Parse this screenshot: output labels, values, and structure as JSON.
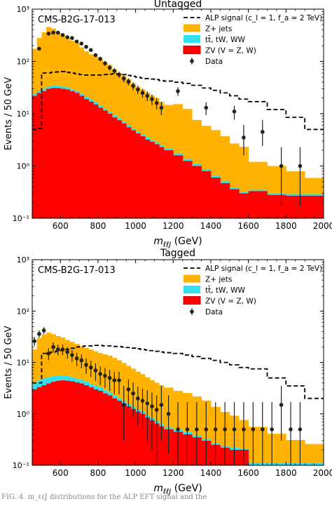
{
  "chart_data": [
    {
      "type": "bar",
      "title": "Untagged",
      "experiment_label": "CMS-B2G-17-013",
      "xlabel": "m_ℓℓJ (GeV)",
      "ylabel": "Events / 50 GeV",
      "xlim": [
        450,
        2000
      ],
      "ylim": [
        0.1,
        1000
      ],
      "yscale": "log",
      "x_ticks": [
        "600",
        "800",
        "1000",
        "1200",
        "1400",
        "1600",
        "1800",
        "2000"
      ],
      "y_ticks": [
        "10⁻¹",
        "10⁰",
        "10¹",
        "10²",
        "10³"
      ],
      "legend_position": "top-right",
      "bin_edges": [
        450,
        475,
        500,
        525,
        550,
        575,
        600,
        625,
        650,
        675,
        700,
        725,
        750,
        775,
        800,
        825,
        850,
        875,
        900,
        925,
        950,
        975,
        1000,
        1025,
        1050,
        1075,
        1100,
        1125,
        1150,
        1200,
        1250,
        1300,
        1350,
        1400,
        1450,
        1500,
        1550,
        1600,
        1700,
        1800,
        1900,
        2000
      ],
      "stack": [
        {
          "name": "ZV (V = Z, W)",
          "color": "#ff0000",
          "values": [
            22,
            25,
            27,
            30,
            31,
            31,
            30,
            29,
            27,
            25,
            22,
            19,
            17,
            15,
            13,
            11.5,
            10,
            8.5,
            7.5,
            6.5,
            5.5,
            4.8,
            4.2,
            3.7,
            3.2,
            2.9,
            2.6,
            2.3,
            2.0,
            1.6,
            1.25,
            1.0,
            0.8,
            0.6,
            0.47,
            0.36,
            0.3,
            0.33,
            0.28,
            0.27,
            0.27
          ]
        },
        {
          "name": "tt̄, tW, WW",
          "color": "#33e0ee",
          "values": [
            2,
            2.5,
            3,
            3.2,
            3.3,
            3.2,
            3.0,
            2.8,
            2.6,
            2.3,
            2.0,
            1.8,
            1.6,
            1.4,
            1.2,
            1.0,
            0.9,
            0.8,
            0.7,
            0.6,
            0.5,
            0.45,
            0.4,
            0.35,
            0.3,
            0.27,
            0.24,
            0.21,
            0.18,
            0.14,
            0.11,
            0.09,
            0.07,
            0.05,
            0.04,
            0.03,
            0.02,
            0.02,
            0.02,
            0.02,
            0.02
          ]
        },
        {
          "name": "Z+ jets",
          "color": "#ffb300",
          "values": [
            150,
            253,
            330,
            420,
            390,
            320,
            290,
            250,
            220,
            193,
            160,
            135,
            118,
            108,
            95,
            84,
            75,
            61,
            52,
            46,
            40,
            33,
            28,
            25,
            22,
            19,
            17,
            14.5,
            12.5,
            13.5,
            11,
            6.5,
            5,
            4.2,
            3.2,
            2.3,
            2.0,
            0.85,
            0.7,
            0.5,
            0.3
          ]
        }
      ],
      "signal": {
        "name": "ALP signal (c_l = 1, f_a = 2 TeV)",
        "color": "#000000",
        "values": [
          5,
          5.2,
          60,
          60,
          62,
          63,
          64,
          62,
          60,
          58,
          56,
          55,
          55,
          55,
          55,
          56,
          57,
          58,
          57,
          56,
          54,
          52,
          50,
          48,
          47,
          46,
          45,
          43,
          42,
          40,
          38,
          35,
          31,
          28,
          25,
          22,
          19,
          17,
          12,
          8.5,
          5
        ]
      },
      "data_points": {
        "name": "Data",
        "x": [
          487,
          537,
          562,
          587,
          612,
          637,
          662,
          687,
          712,
          737,
          762,
          787,
          812,
          837,
          862,
          887,
          912,
          937,
          962,
          987,
          1012,
          1037,
          1062,
          1087,
          1112,
          1137,
          1225,
          1375,
          1525,
          1575,
          1675,
          1775,
          1875
        ],
        "y": [
          175,
          340,
          355,
          355,
          320,
          290,
          280,
          240,
          220,
          190,
          165,
          132,
          112,
          92,
          76,
          66,
          56,
          47,
          41,
          34,
          29,
          25,
          22,
          19,
          16,
          13,
          27,
          13,
          11,
          3.5,
          4.5,
          1.0,
          1.0
        ],
        "err_lo": [
          13,
          18,
          19,
          19,
          18,
          17,
          17,
          15,
          15,
          14,
          13,
          11,
          11,
          10,
          9,
          8,
          7.5,
          7,
          6.4,
          5.8,
          5.4,
          5,
          4.7,
          4.4,
          4,
          3.6,
          5.2,
          3.6,
          3.3,
          1.9,
          2.1,
          0.83,
          0.83
        ],
        "err_hi": [
          13,
          18,
          19,
          19,
          18,
          17,
          17,
          15,
          15,
          14,
          13,
          11,
          11,
          10,
          9,
          8,
          7.5,
          7,
          6.4,
          5.8,
          5.4,
          5,
          4.7,
          4.4,
          4,
          3.6,
          5.2,
          3.6,
          3.3,
          2.6,
          3.1,
          1.3,
          1.3
        ]
      }
    },
    {
      "type": "bar",
      "title": "Tagged",
      "experiment_label": "CMS-B2G-17-013",
      "xlabel": "m_ℓℓJ (GeV)",
      "ylabel": "Events / 50 GeV",
      "xlim": [
        450,
        2000
      ],
      "ylim": [
        0.1,
        1000
      ],
      "yscale": "log",
      "x_ticks": [
        "600",
        "800",
        "1000",
        "1200",
        "1400",
        "1600",
        "1800",
        "2000"
      ],
      "y_ticks": [
        "10⁻¹",
        "10⁰",
        "10¹",
        "10²",
        "10³"
      ],
      "legend_position": "top-right",
      "bin_edges": [
        450,
        475,
        500,
        525,
        550,
        575,
        600,
        625,
        650,
        675,
        700,
        725,
        750,
        775,
        800,
        825,
        850,
        875,
        900,
        925,
        950,
        975,
        1000,
        1025,
        1050,
        1075,
        1100,
        1125,
        1150,
        1200,
        1250,
        1300,
        1350,
        1400,
        1450,
        1500,
        1550,
        1600,
        1700,
        1800,
        1900,
        2000
      ],
      "stack": [
        {
          "name": "ZV (V = Z, W)",
          "color": "#ff0000",
          "values": [
            3,
            3.3,
            3.6,
            3.9,
            4.2,
            4.4,
            4.5,
            4.4,
            4.3,
            4.1,
            3.9,
            3.6,
            3.3,
            3.0,
            2.8,
            2.5,
            2.3,
            2.0,
            1.8,
            1.6,
            1.4,
            1.25,
            1.1,
            1.0,
            0.85,
            0.75,
            0.65,
            0.57,
            0.5,
            0.45,
            0.4,
            0.35,
            0.3,
            0.25,
            0.22,
            0.2,
            0.2,
            0.1,
            0.1,
            0.1,
            0.1
          ]
        },
        {
          "name": "tt̄, tW, WW",
          "color": "#33e0ee",
          "values": [
            1.0,
            1.2,
            1.3,
            1.3,
            1.2,
            1.2,
            1.1,
            1.0,
            0.9,
            0.8,
            0.75,
            0.65,
            0.55,
            0.5,
            0.45,
            0.4,
            0.35,
            0.3,
            0.25,
            0.2,
            0.18,
            0.15,
            0.13,
            0.11,
            0.1,
            0.08,
            0.07,
            0.06,
            0.05,
            0.04,
            0.04,
            0.03,
            0.02,
            0.02,
            0.02,
            0.02,
            0.01,
            0.01,
            0.01,
            0.01,
            0.01
          ]
        },
        {
          "name": "Z+ jets",
          "color": "#ffb300",
          "values": [
            14,
            25,
            30,
            33,
            30,
            27,
            25,
            22,
            20,
            18,
            16,
            15,
            14,
            13,
            12,
            11.5,
            11,
            10,
            9,
            8,
            7,
            6.2,
            5.4,
            4.8,
            4.2,
            3.7,
            3.3,
            3.0,
            2.7,
            2.3,
            2.1,
            1.8,
            1.5,
            1.1,
            0.85,
            0.7,
            0.55,
            0.45,
            0.3,
            0.2,
            0.15
          ]
        }
      ],
      "signal": {
        "name": "ALP signal (c_l = 1, f_a = 2 TeV)",
        "color": "#000000",
        "values": [
          4,
          4,
          15,
          15.5,
          16,
          16.5,
          17,
          18,
          19,
          20,
          20.5,
          21,
          21,
          21.5,
          21.5,
          21,
          21,
          20.5,
          20.5,
          20,
          19.5,
          19,
          18.5,
          18,
          17.5,
          17,
          16.5,
          16,
          15.5,
          15,
          14,
          13,
          12,
          11,
          10,
          9,
          8,
          7.5,
          5,
          3.5,
          2
        ]
      },
      "data_points": {
        "name": "Data",
        "x": [
          462,
          487,
          512,
          537,
          562,
          587,
          612,
          637,
          662,
          687,
          712,
          737,
          762,
          787,
          812,
          837,
          862,
          887,
          912,
          937,
          962,
          987,
          1012,
          1037,
          1062,
          1087,
          1112,
          1137,
          1175,
          1225,
          1275,
          1325,
          1375,
          1425,
          1475,
          1525,
          1575,
          1625,
          1675,
          1725,
          1775,
          1825,
          1875
        ],
        "y": [
          26,
          36,
          42,
          15,
          20,
          18,
          18,
          16,
          14,
          12,
          11,
          9,
          8,
          7,
          6,
          5.5,
          5,
          4.5,
          4.5,
          1.5,
          3,
          2.5,
          2,
          1.8,
          1.6,
          1.4,
          1.2,
          1.5,
          1.0,
          0.5,
          0.5,
          0.5,
          0.5,
          0.5,
          0.5,
          0.5,
          0.5,
          0.5,
          0.5,
          0.5,
          1.5,
          0.5,
          0.5
        ],
        "err_lo": [
          5.1,
          6,
          6.5,
          3.9,
          4.5,
          4.2,
          4.2,
          4,
          3.7,
          3.5,
          3.3,
          3,
          2.8,
          2.6,
          2.4,
          2.3,
          2.2,
          2.1,
          2.1,
          1.2,
          1.7,
          1.6,
          1.4,
          1.3,
          1.3,
          1.2,
          1.1,
          1.2,
          0.83,
          0.41,
          0.41,
          0.41,
          0.41,
          0.41,
          0.41,
          0.41,
          0.41,
          0.41,
          0.41,
          0.41,
          1.2,
          0.41,
          0.41
        ],
        "err_hi": [
          5.1,
          6,
          6.5,
          3.9,
          4.5,
          4.2,
          4.2,
          4,
          3.7,
          3.5,
          3.3,
          3,
          2.8,
          2.6,
          2.4,
          2.3,
          2.2,
          2.1,
          2.1,
          2.0,
          1.7,
          1.6,
          1.4,
          1.3,
          1.3,
          1.2,
          1.1,
          2.0,
          1.3,
          1.2,
          1.2,
          1.2,
          1.2,
          1.2,
          1.2,
          1.2,
          1.2,
          1.2,
          1.2,
          1.2,
          2.0,
          1.2,
          1.2
        ]
      }
    }
  ],
  "caption": "FIG. 4. m_ℓℓJ distributions for the ALP EFT signal and the"
}
